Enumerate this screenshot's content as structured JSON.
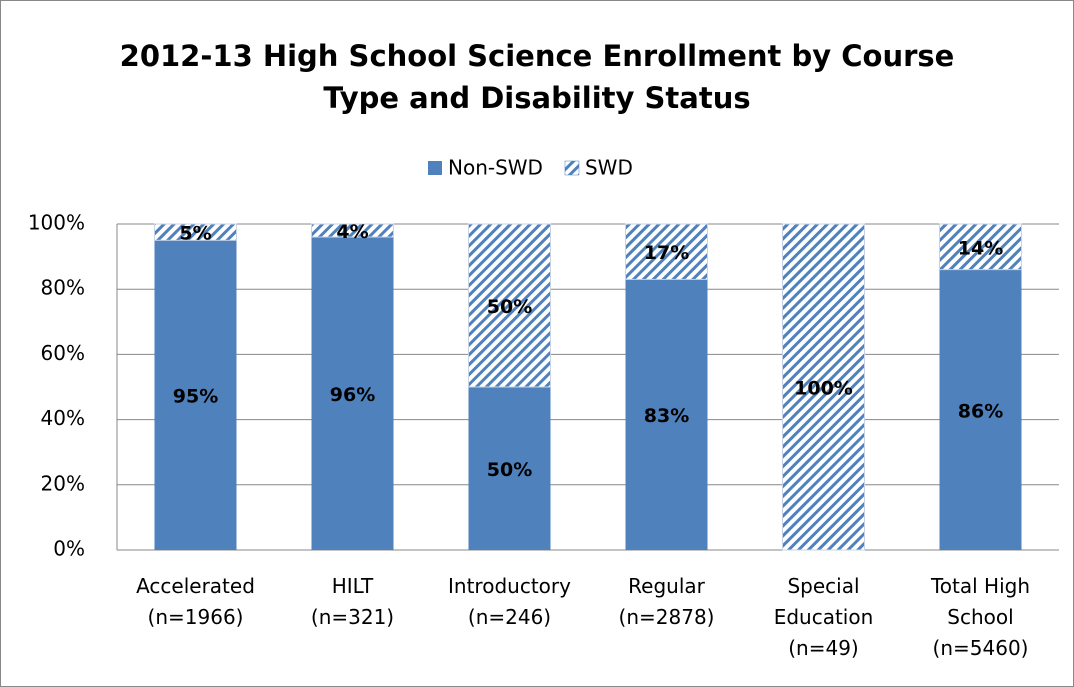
{
  "chart_data": {
    "type": "stacked_bar",
    "title": "2012-13 High School Science Enrollment by Course\nType and Disability Status",
    "categories": [
      "Accelerated\n(n=1966)",
      "HILT\n(n=321)",
      "Introductory\n(n=246)",
      "Regular\n(n=2878)",
      "Special\nEducation\n(n=49)",
      "Total High\nSchool\n(n=5460)"
    ],
    "series": [
      {
        "name": "Non-SWD",
        "color": "#4f81bd",
        "pattern": "solid",
        "values": [
          95,
          96,
          50,
          83,
          0,
          86
        ],
        "value_labels": [
          "95%",
          "96%",
          "50%",
          "83%",
          null,
          "86%"
        ]
      },
      {
        "name": "SWD",
        "color": "#4f81bd",
        "pattern": "diagonal",
        "values": [
          5,
          4,
          50,
          17,
          100,
          14
        ],
        "value_labels": [
          "5%",
          "4%",
          "50%",
          "17%",
          "100%",
          "14%"
        ]
      }
    ],
    "ylim": [
      0,
      100
    ],
    "yticks": [
      {
        "value": 0,
        "label": "0%"
      },
      {
        "value": 20,
        "label": "20%"
      },
      {
        "value": 40,
        "label": "40%"
      },
      {
        "value": 60,
        "label": "60%"
      },
      {
        "value": 80,
        "label": "80%"
      },
      {
        "value": 100,
        "label": "100%"
      }
    ],
    "grid": true,
    "legend": "top"
  }
}
